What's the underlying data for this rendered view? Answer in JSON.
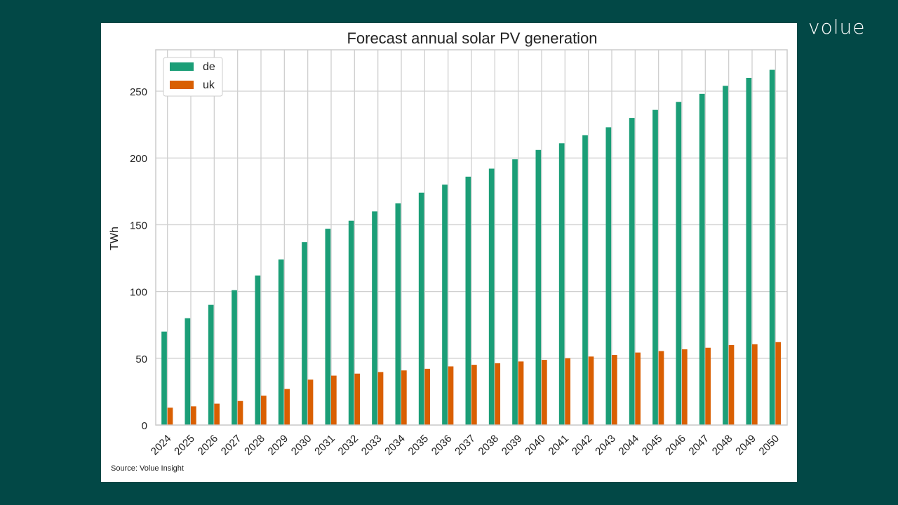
{
  "brand": {
    "logo_text": "volue"
  },
  "source": "Source: Volue Insight",
  "colors": {
    "background": "#024846",
    "de": "#1b9e77",
    "uk": "#d95f02",
    "grid": "#d0d0d0"
  },
  "chart_data": {
    "type": "bar",
    "title": "Forecast annual solar PV generation",
    "xlabel": "",
    "ylabel": "TWh",
    "ylim": [
      0,
      281
    ],
    "yticks": [
      0,
      50,
      100,
      150,
      200,
      250
    ],
    "grid": true,
    "legend_position": "top-left",
    "categories": [
      "2024",
      "2025",
      "2026",
      "2027",
      "2028",
      "2029",
      "2030",
      "2031",
      "2032",
      "2033",
      "2034",
      "2035",
      "2036",
      "2037",
      "2038",
      "2039",
      "2040",
      "2041",
      "2042",
      "2043",
      "2044",
      "2045",
      "2046",
      "2047",
      "2048",
      "2049",
      "2050"
    ],
    "series": [
      {
        "name": "de",
        "values": [
          70,
          80,
          90,
          101,
          112,
          124,
          137,
          147,
          153,
          160,
          166,
          174,
          180,
          186,
          192,
          199,
          206,
          211,
          217,
          223,
          230,
          236,
          242,
          248,
          254,
          260,
          266
        ]
      },
      {
        "name": "uk",
        "values": [
          13,
          14,
          16,
          18,
          22,
          27,
          34,
          37,
          38.5,
          39.7,
          40.9,
          42.1,
          43.9,
          45.1,
          46.3,
          47.6,
          48.8,
          50,
          51.3,
          52.5,
          54.3,
          55.4,
          56.7,
          57.9,
          59.9,
          60.5,
          62.1
        ]
      }
    ]
  }
}
